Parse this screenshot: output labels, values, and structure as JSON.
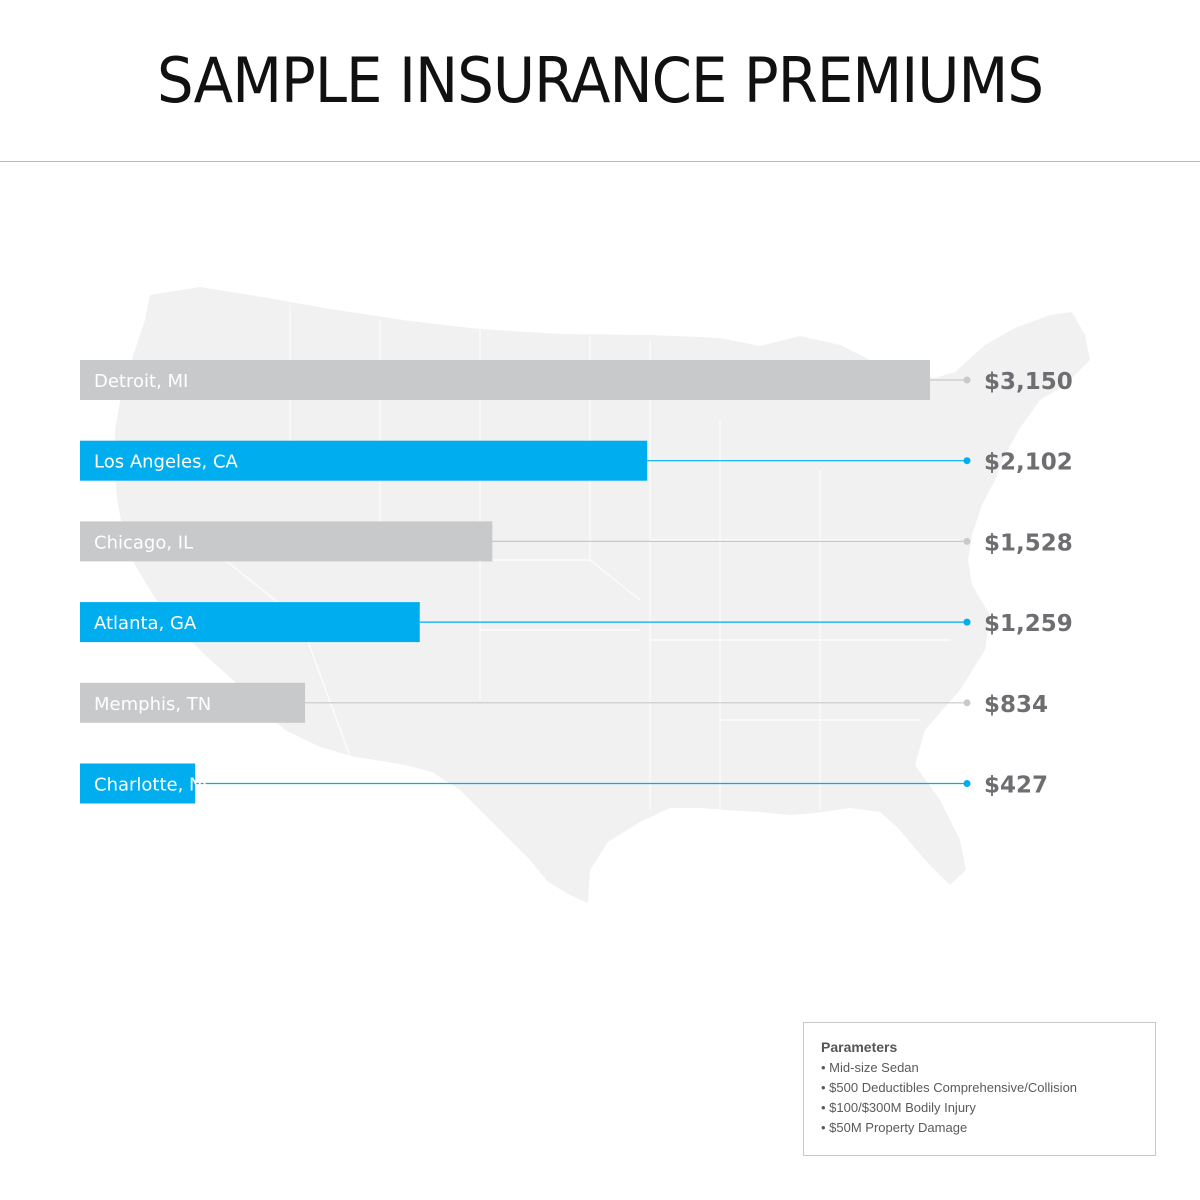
{
  "title": "SAMPLE INSURANCE PREMIUMS",
  "colors": {
    "gray_bar": "#c8c9cb",
    "blue_bar": "#00aeef",
    "value_text": "#6d6e71",
    "map_fill": "#f1f1f2"
  },
  "chart_data": {
    "type": "bar",
    "orientation": "horizontal",
    "categories": [
      "Detroit, MI",
      "Los Angeles, CA",
      "Chicago, IL",
      "Atlanta, GA",
      "Memphis, TN",
      "Charlotte, NC"
    ],
    "values": [
      3150,
      2102,
      1528,
      1259,
      834,
      427
    ],
    "value_labels": [
      "$3,150",
      "$2,102",
      "$1,528",
      "$1,259",
      "$834",
      "$427"
    ],
    "bar_colors": [
      "gray",
      "blue",
      "gray",
      "blue",
      "gray",
      "blue"
    ],
    "background": "map of the United States"
  },
  "parameters": {
    "heading": "Parameters",
    "items": [
      "Mid-size Sedan",
      "$500 Deductibles Comprehensive/Collision",
      "$100/$300M Bodily Injury",
      "$50M Property Damage"
    ]
  }
}
